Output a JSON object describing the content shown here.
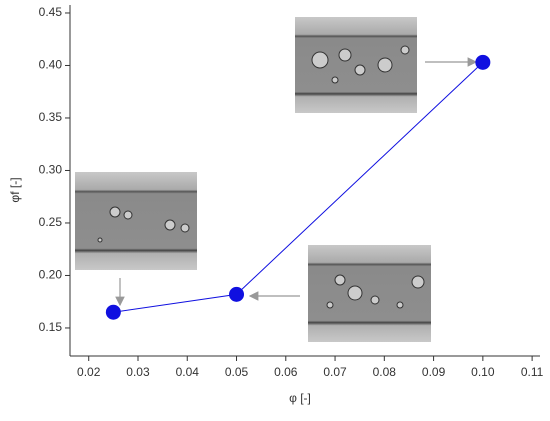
{
  "chart_data": {
    "type": "line",
    "x_label": "φ [-]",
    "y_label": "φf [-]",
    "x": [
      0.025,
      0.05,
      0.1
    ],
    "series": [
      {
        "name": "φf",
        "color": "#1010e0",
        "values": [
          0.165,
          0.182,
          0.403
        ]
      }
    ],
    "xlim": [
      0.0162,
      0.1116
    ],
    "xticks": [
      0.02,
      0.03,
      0.04,
      0.05,
      0.06,
      0.07,
      0.08,
      0.09,
      {
        "value": 0.1,
        "label": "0.10"
      },
      0.11
    ],
    "ylim": [
      0.1233,
      0.4576
    ],
    "yticks": [
      0.15,
      {
        "value": 0.2,
        "label": "0.20"
      },
      0.25,
      {
        "value": 0.3,
        "label": "0.30"
      },
      0.35,
      {
        "value": 0.4,
        "label": "0.40"
      },
      0.45
    ],
    "grid": false
  }
}
